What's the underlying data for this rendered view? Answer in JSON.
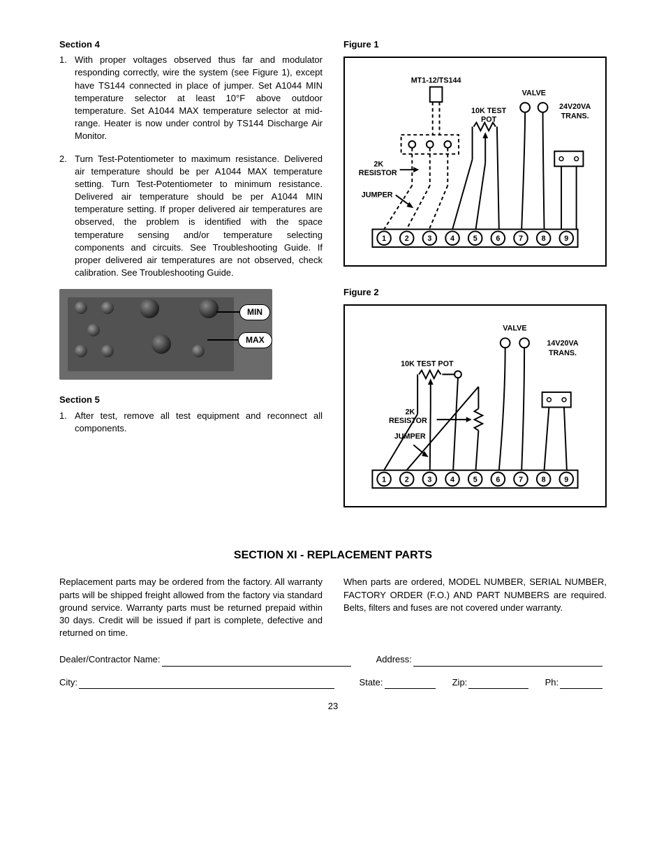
{
  "section4": {
    "heading": "Section 4",
    "items": [
      "With proper voltages observed thus far and modulator responding correctly, wire the system (see Figure 1), except have TS144 connected in place of jumper.  Set A1044 MIN temperature selector at least 10°F above outdoor temperature.  Set A1044 MAX temperature selector at mid-range.  Heater is now under control by TS144 Discharge Air Monitor.",
      "Turn Test-Potentiometer to maximum resistance.  Delivered air temperature should be per A1044 MAX temperature setting.  Turn Test-Potentiometer to minimum resistance.  Delivered air temperature should be per A1044 MIN temperature setting.  If proper delivered air temperatures are observed, the problem is identified with the space temperature sensing and/or temperature selecting components and circuits.  See Troubleshooting Guide.  If proper delivered air temperatures are not observed, check calibration.  See Troubleshooting Guide."
    ]
  },
  "photo_labels": {
    "min": "MIN",
    "max": "MAX"
  },
  "section5": {
    "heading": "Section 5",
    "items": [
      "After test, remove all test equipment and reconnect all components."
    ]
  },
  "figure1": {
    "heading": "Figure 1",
    "labels": {
      "top": "MT1-12/TS144",
      "valve": "VALVE",
      "trans": "24V20VA\nTRANS.",
      "pot": "10K TEST\nPOT",
      "resistor": "2K\nRESISTOR",
      "jumper": "JUMPER"
    },
    "terminals": 9,
    "colors": {
      "stroke": "#000000",
      "background": "#ffffff"
    }
  },
  "figure2": {
    "heading": "Figure 2",
    "labels": {
      "valve": "VALVE",
      "trans": "14V20VA\nTRANS.",
      "pot": "10K TEST POT",
      "resistor": "2K\nRESISTOR",
      "jumper": "JUMPER"
    },
    "terminals": 9,
    "colors": {
      "stroke": "#000000",
      "background": "#ffffff"
    }
  },
  "sectionXI": {
    "heading": "SECTION XI - REPLACEMENT PARTS",
    "left": "Replacement parts may be ordered from the factory.  All warranty parts will be shipped freight allowed from the factory via standard ground service.  Warranty parts must be returned prepaid within 30 days.  Credit will be issued if part is complete, defective and returned on time.",
    "right": "When parts are ordered, MODEL NUMBER, SERIAL NUMBER, FACTORY ORDER (F.O.) AND PART NUMBERS are required.  Belts, filters and fuses are not covered under warranty."
  },
  "form": {
    "dealer": "Dealer/Contractor Name:",
    "address": "Address:",
    "city": "City:",
    "state": "State:",
    "zip": "Zip:",
    "ph": "Ph:"
  },
  "page_number": "23"
}
